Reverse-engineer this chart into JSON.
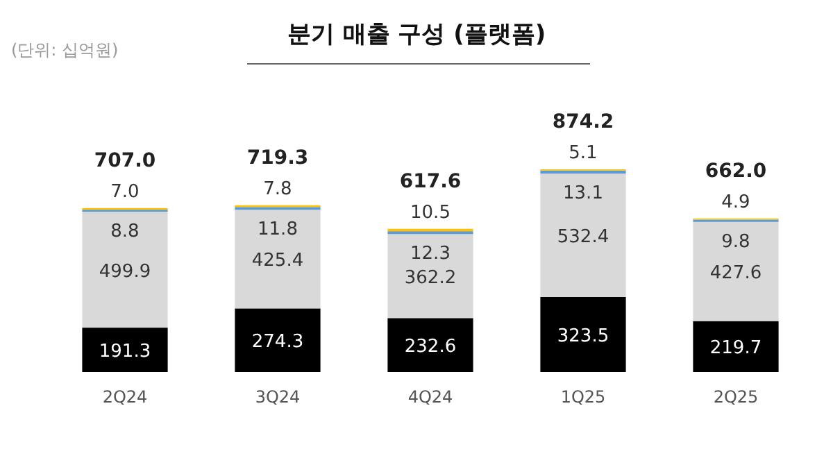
{
  "chart_data": {
    "type": "bar",
    "title": "분기 매출 구성 (플랫폼)",
    "annotations": [
      "(단위: 십억원)"
    ],
    "categories": [
      "2Q24",
      "3Q24",
      "4Q24",
      "1Q25",
      "2Q25"
    ],
    "stacked": true,
    "series": [
      {
        "color": "#000000",
        "values": [
          191.3,
          274.3,
          232.6,
          323.5,
          219.7
        ],
        "value_labels": [
          "191.3",
          "274.3",
          "232.6",
          "323.5",
          "219.7"
        ]
      },
      {
        "color": "#d9d9d9",
        "values": [
          499.9,
          425.4,
          362.2,
          532.4,
          427.6
        ],
        "value_labels": [
          "499.9",
          "425.4",
          "362.2",
          "532.4",
          "427.6"
        ]
      },
      {
        "color": "#5b9bd5",
        "values": [
          8.8,
          11.8,
          12.3,
          13.1,
          9.8
        ],
        "value_labels": [
          "8.8",
          "11.8",
          "12.3",
          "13.1",
          "9.8"
        ]
      },
      {
        "color": "#ffc000",
        "values": [
          7.0,
          7.8,
          10.5,
          5.1,
          4.9
        ],
        "value_labels": [
          "7.0",
          "7.8",
          "10.5",
          "5.1",
          "4.9"
        ]
      }
    ],
    "totals": [
      "707.0",
      "719.3",
      "617.6",
      "874.2",
      "662.0"
    ]
  }
}
